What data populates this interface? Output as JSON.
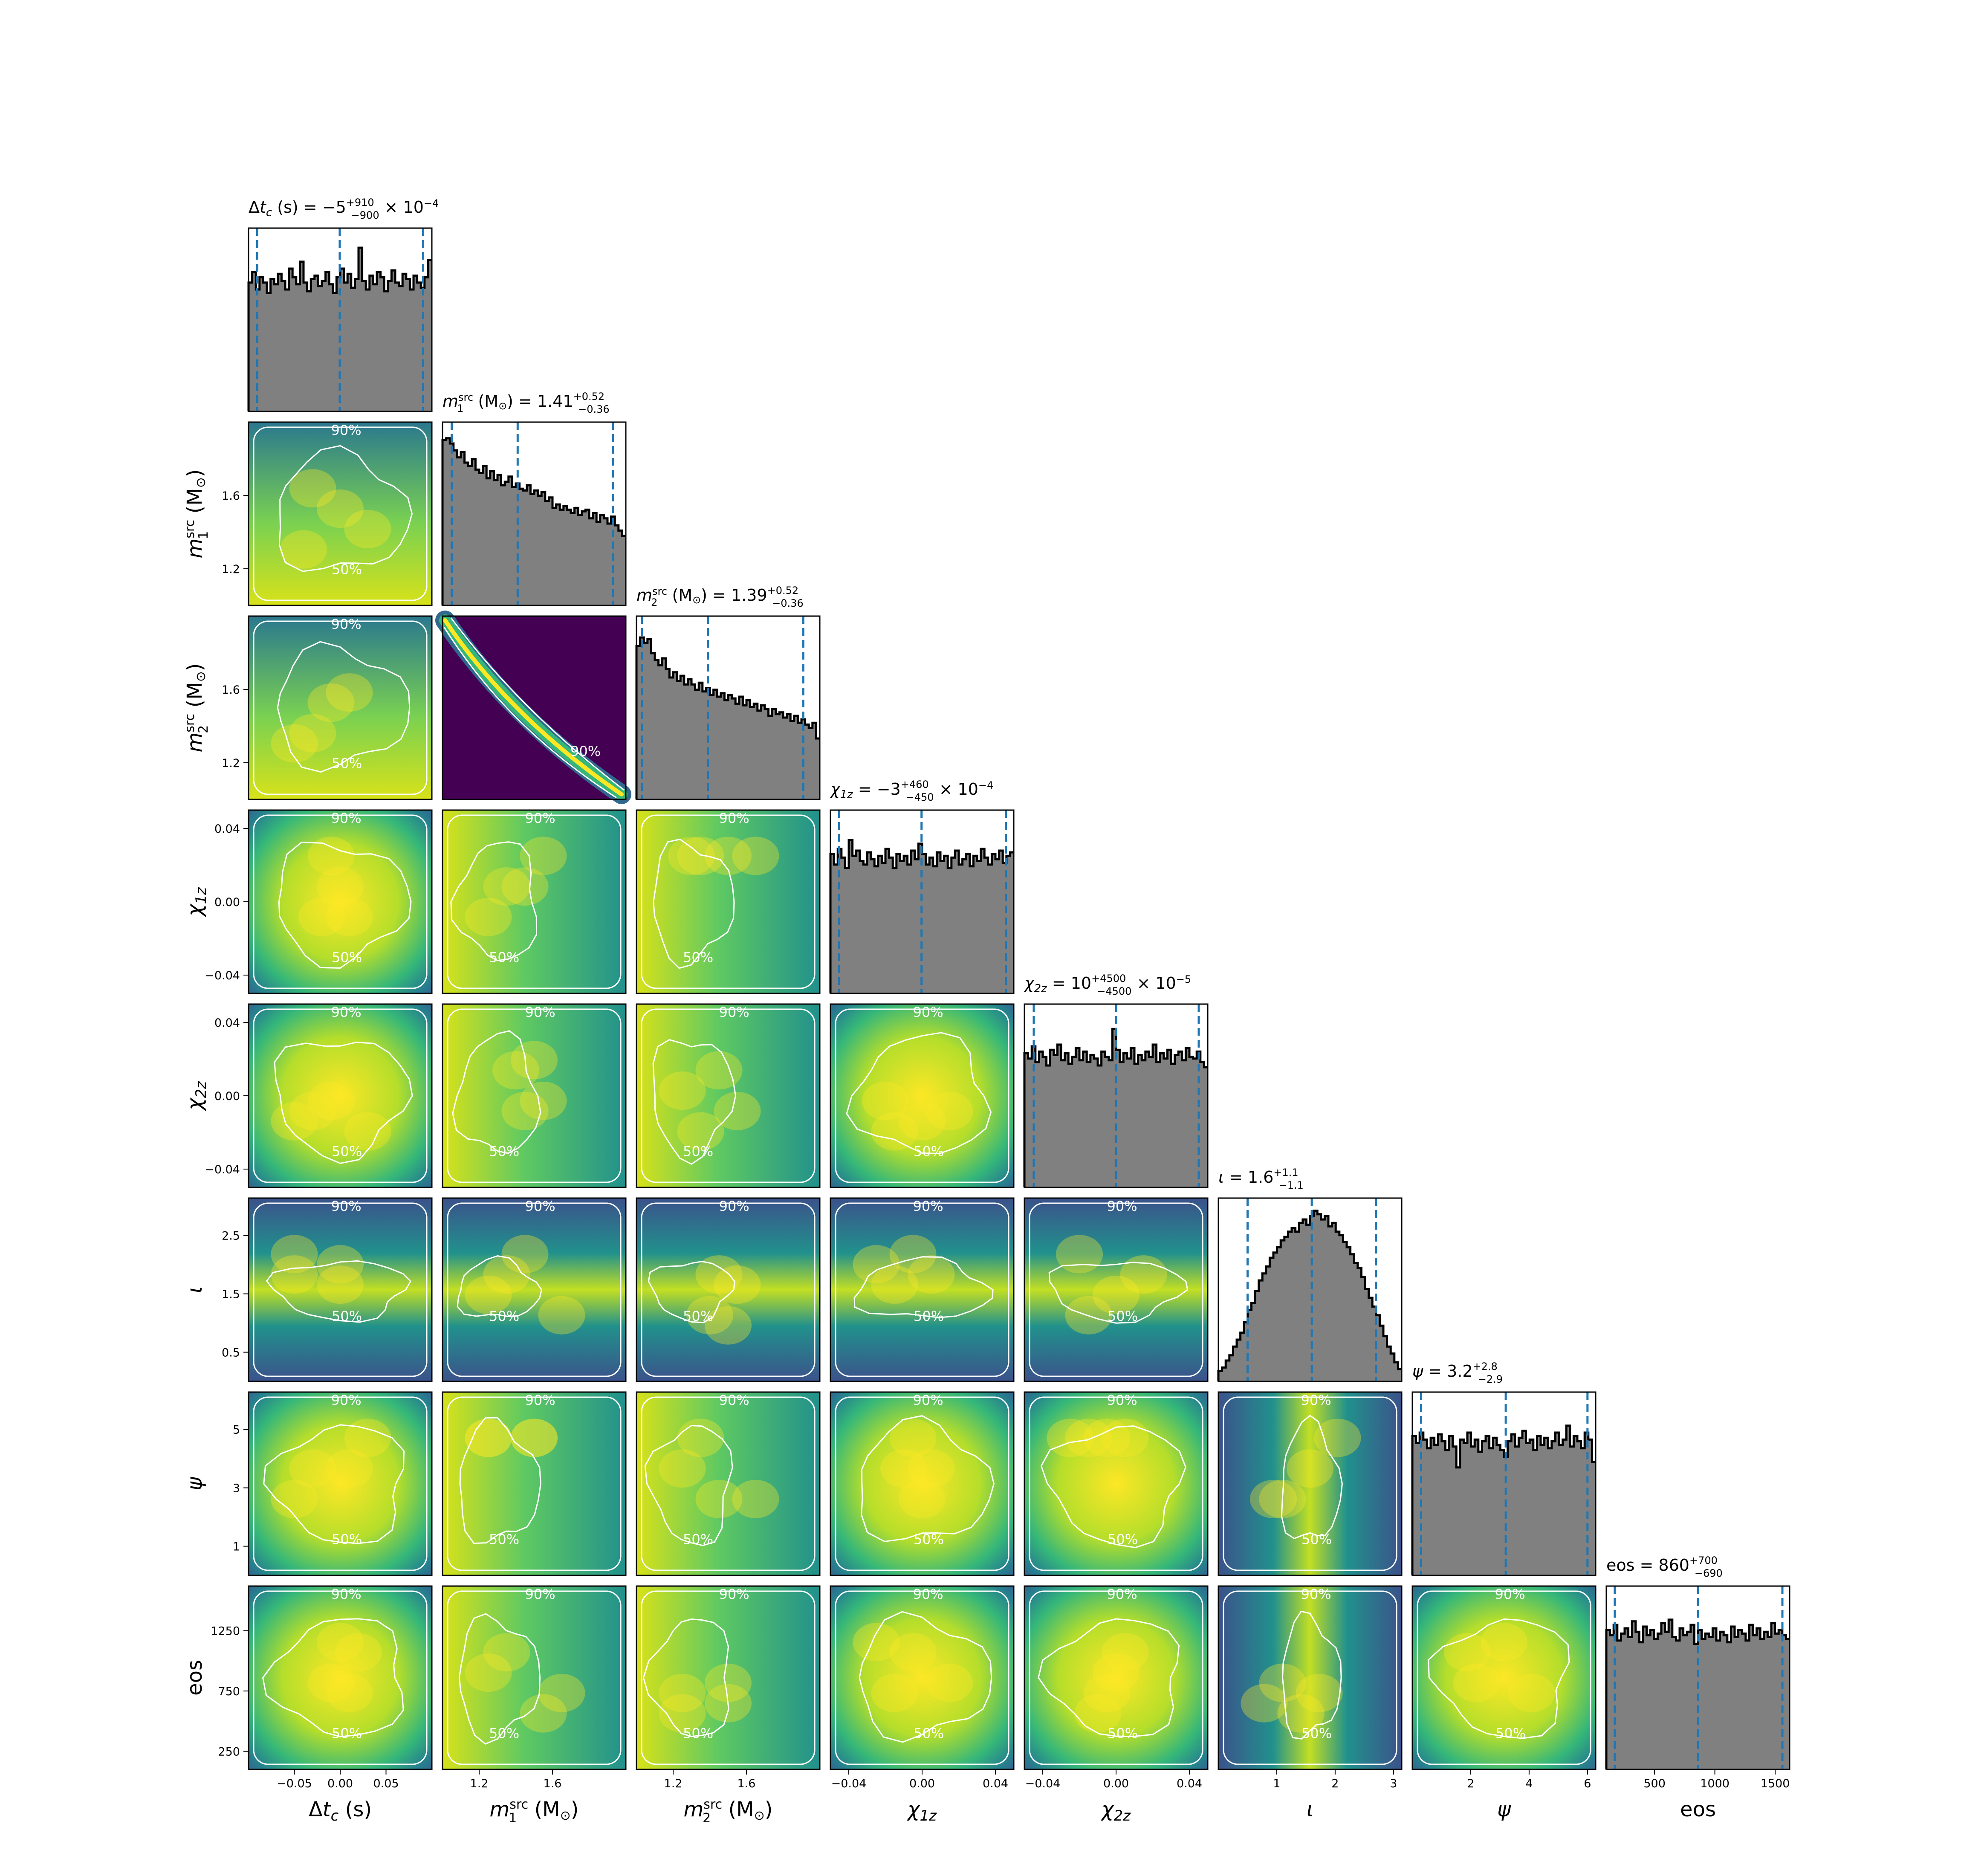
{
  "chart_data": {
    "type": "corner",
    "description_free": true,
    "parameters": [
      {
        "key": "dtc",
        "axis_label": "Δt_c (s)",
        "title": "Δt_c (s) = −5 +910/−900 × 10⁻⁴",
        "title_main": "Δt",
        "title_sub": "c",
        "title_unit": " (s) = −5",
        "title_sup": "+910",
        "title_subscr": "−900",
        "title_tail": " × 10",
        "title_tail_sup": "−4",
        "median": -0.0005,
        "q_low": -0.0905,
        "q_high": 0.0905,
        "range": [
          -0.1,
          0.1
        ],
        "ticks": [
          -0.05,
          0.0,
          0.05
        ],
        "tick_labels": [
          "−0.05",
          "0.00",
          "0.05"
        ],
        "hist_shape": "flat",
        "hist_counts": [
          0.74,
          0.8,
          0.7,
          0.77,
          0.74,
          0.68,
          0.76,
          0.73,
          0.79,
          0.75,
          0.7,
          0.82,
          0.77,
          0.73,
          0.86,
          0.74,
          0.69,
          0.76,
          0.78,
          0.72,
          0.75,
          0.8,
          0.73,
          0.68,
          0.77,
          0.82,
          0.74,
          0.79,
          0.71,
          0.76,
          0.94,
          0.75,
          0.7,
          0.78,
          0.73,
          0.8,
          0.77,
          0.69,
          0.75,
          0.81,
          0.74,
          0.72,
          0.79,
          0.76,
          0.7,
          0.78,
          0.74,
          0.71,
          0.77,
          0.87
        ]
      },
      {
        "key": "m1",
        "axis_label": "m1src (M⊙)",
        "title": "m1src (M⊙) = 1.41 +0.52/−0.36",
        "median": 1.41,
        "q_low": 1.05,
        "q_high": 1.93,
        "range": [
          1.0,
          2.0
        ],
        "ticks": [
          1.2,
          1.6
        ],
        "tick_labels": [
          "1.2",
          "1.6"
        ],
        "hist_shape": "falling",
        "hist_counts": [
          0.95,
          0.96,
          0.93,
          0.89,
          0.85,
          0.88,
          0.82,
          0.8,
          0.84,
          0.78,
          0.76,
          0.8,
          0.73,
          0.77,
          0.72,
          0.75,
          0.69,
          0.71,
          0.74,
          0.68,
          0.7,
          0.67,
          0.66,
          0.69,
          0.64,
          0.66,
          0.63,
          0.65,
          0.6,
          0.62,
          0.56,
          0.58,
          0.55,
          0.57,
          0.55,
          0.53,
          0.56,
          0.52,
          0.54,
          0.55,
          0.5,
          0.53,
          0.48,
          0.52,
          0.5,
          0.47,
          0.51,
          0.46,
          0.43,
          0.4
        ]
      },
      {
        "key": "m2",
        "axis_label": "m2src (M⊙)",
        "title": "m2src (M⊙) = 1.39 +0.52/−0.36",
        "median": 1.39,
        "q_low": 1.03,
        "q_high": 1.91,
        "range": [
          1.0,
          2.0
        ],
        "ticks": [
          1.2,
          1.6
        ],
        "tick_labels": [
          "1.2",
          "1.6"
        ],
        "hist_shape": "falling",
        "hist_counts": [
          0.88,
          0.93,
          0.9,
          0.92,
          0.84,
          0.8,
          0.77,
          0.81,
          0.75,
          0.7,
          0.73,
          0.68,
          0.71,
          0.66,
          0.69,
          0.66,
          0.63,
          0.67,
          0.62,
          0.64,
          0.6,
          0.63,
          0.59,
          0.61,
          0.57,
          0.6,
          0.58,
          0.55,
          0.59,
          0.54,
          0.57,
          0.53,
          0.55,
          0.51,
          0.54,
          0.52,
          0.48,
          0.52,
          0.49,
          0.5,
          0.47,
          0.49,
          0.45,
          0.48,
          0.44,
          0.46,
          0.43,
          0.41,
          0.44,
          0.35
        ]
      },
      {
        "key": "chi1z",
        "axis_label": "χ1z",
        "title": "χ1z = −3 +460/−450 × 10⁻⁴",
        "median": -0.0003,
        "q_low": -0.0453,
        "q_high": 0.0457,
        "range": [
          -0.05,
          0.05
        ],
        "ticks": [
          -0.04,
          0.0,
          0.04
        ],
        "tick_labels": [
          "−0.04",
          "0.00",
          "0.04"
        ],
        "hist_shape": "flat",
        "hist_counts": [
          0.8,
          0.74,
          0.83,
          0.78,
          0.72,
          0.88,
          0.79,
          0.82,
          0.76,
          0.74,
          0.81,
          0.77,
          0.73,
          0.79,
          0.75,
          0.83,
          0.78,
          0.72,
          0.8,
          0.76,
          0.79,
          0.74,
          0.82,
          0.77,
          0.86,
          0.8,
          0.74,
          0.78,
          0.73,
          0.81,
          0.76,
          0.79,
          0.72,
          0.78,
          0.82,
          0.74,
          0.77,
          0.8,
          0.73,
          0.79,
          0.76,
          0.83,
          0.78,
          0.74,
          0.8,
          0.77,
          0.82,
          0.75,
          0.79,
          0.81
        ]
      },
      {
        "key": "chi2z",
        "axis_label": "χ2z",
        "title": "χ2z = 10 +4500/−4500 × 10⁻⁵",
        "median": 0.0001,
        "q_low": -0.0449,
        "q_high": 0.0451,
        "range": [
          -0.05,
          0.05
        ],
        "ticks": [
          -0.04,
          0.0,
          0.04
        ],
        "tick_labels": [
          "−0.04",
          "0.00",
          "0.04"
        ],
        "hist_shape": "flat",
        "hist_counts": [
          0.77,
          0.74,
          0.81,
          0.72,
          0.78,
          0.75,
          0.7,
          0.79,
          0.76,
          0.82,
          0.73,
          0.77,
          0.71,
          0.75,
          0.8,
          0.73,
          0.78,
          0.72,
          0.76,
          0.74,
          0.7,
          0.78,
          0.75,
          0.73,
          0.91,
          0.79,
          0.72,
          0.77,
          0.74,
          0.8,
          0.71,
          0.76,
          0.73,
          0.78,
          0.75,
          0.82,
          0.72,
          0.77,
          0.74,
          0.79,
          0.71,
          0.76,
          0.78,
          0.73,
          0.8,
          0.75,
          0.74,
          0.78,
          0.72,
          0.69
        ]
      },
      {
        "key": "iota",
        "axis_label": "ι",
        "title": "ι = 1.6 +1.1/−1.1",
        "median": 1.6,
        "q_low": 0.5,
        "q_high": 2.7,
        "range": [
          0.0,
          3.14
        ],
        "ticks": [
          1,
          2,
          3
        ],
        "tick_labels": [
          "1",
          "2",
          "3"
        ],
        "hist_shape": "sine",
        "hist_counts": [
          0.06,
          0.08,
          0.12,
          0.15,
          0.2,
          0.24,
          0.28,
          0.34,
          0.41,
          0.45,
          0.52,
          0.58,
          0.62,
          0.66,
          0.71,
          0.74,
          0.77,
          0.81,
          0.83,
          0.86,
          0.88,
          0.86,
          0.91,
          0.93,
          0.9,
          0.95,
          0.98,
          0.96,
          0.93,
          0.95,
          0.89,
          0.91,
          0.86,
          0.84,
          0.8,
          0.77,
          0.73,
          0.68,
          0.65,
          0.6,
          0.53,
          0.48,
          0.43,
          0.38,
          0.32,
          0.26,
          0.2,
          0.16,
          0.11,
          0.07
        ]
      },
      {
        "key": "psi",
        "axis_label": "ψ",
        "title": "ψ = 3.2 +2.8/−2.9",
        "median": 3.2,
        "q_low": 0.3,
        "q_high": 6.0,
        "range": [
          0.0,
          6.28
        ],
        "ticks": [
          2,
          4,
          6
        ],
        "tick_labels": [
          "2",
          "4",
          "6"
        ],
        "hist_shape": "flat",
        "hist_counts": [
          0.8,
          0.76,
          0.82,
          0.78,
          0.73,
          0.79,
          0.75,
          0.81,
          0.77,
          0.72,
          0.8,
          0.74,
          0.62,
          0.78,
          0.76,
          0.82,
          0.74,
          0.78,
          0.71,
          0.77,
          0.8,
          0.73,
          0.79,
          0.75,
          0.72,
          0.68,
          0.77,
          0.81,
          0.74,
          0.79,
          0.83,
          0.76,
          0.78,
          0.72,
          0.8,
          0.75,
          0.79,
          0.73,
          0.77,
          0.82,
          0.75,
          0.78,
          0.86,
          0.74,
          0.8,
          0.77,
          0.73,
          0.82,
          0.78,
          0.65
        ]
      },
      {
        "key": "eos",
        "axis_label": "eos",
        "title": "eos = 860 +700/−690",
        "median": 860,
        "q_low": 170,
        "q_high": 1560,
        "range": [
          100,
          1620
        ],
        "ticks": [
          500,
          1000,
          1500
        ],
        "tick_labels": [
          "500",
          "1000",
          "1500"
        ],
        "y_ticks": [
          250,
          750,
          1250
        ],
        "y_tick_labels": [
          "250",
          "750",
          "1250"
        ],
        "hist_shape": "flat",
        "hist_counts": [
          0.8,
          0.77,
          0.83,
          0.74,
          0.78,
          0.81,
          0.76,
          0.85,
          0.79,
          0.73,
          0.82,
          0.77,
          0.8,
          0.75,
          0.78,
          0.84,
          0.79,
          0.86,
          0.76,
          0.74,
          0.81,
          0.77,
          0.79,
          0.83,
          0.72,
          0.8,
          0.75,
          0.78,
          0.76,
          0.81,
          0.74,
          0.79,
          0.77,
          0.73,
          0.82,
          0.76,
          0.8,
          0.78,
          0.74,
          0.83,
          0.77,
          0.81,
          0.75,
          0.79,
          0.76,
          0.84,
          0.78,
          0.8,
          0.77,
          0.75
        ]
      }
    ],
    "y_ticks": {
      "m1": [
        "1.2",
        "1.6"
      ],
      "m2": [
        "1.2",
        "1.6"
      ],
      "chi1z": [
        "0.04",
        "0.00",
        "−0.04"
      ],
      "chi2z": [
        "0.04",
        "0.00",
        "−0.04"
      ],
      "iota": [
        "2.5",
        "1.5",
        "0.5"
      ],
      "psi": [
        "5",
        "3",
        "1"
      ],
      "eos": [
        "1250",
        "750",
        "250"
      ]
    },
    "contour_levels": [
      "50%",
      "90%"
    ],
    "colormap": "viridis",
    "hist_color": "#808080",
    "hist_edge": "#000000",
    "quantile_line_color": "#1f77b4",
    "contour_color": "#ffffff"
  }
}
